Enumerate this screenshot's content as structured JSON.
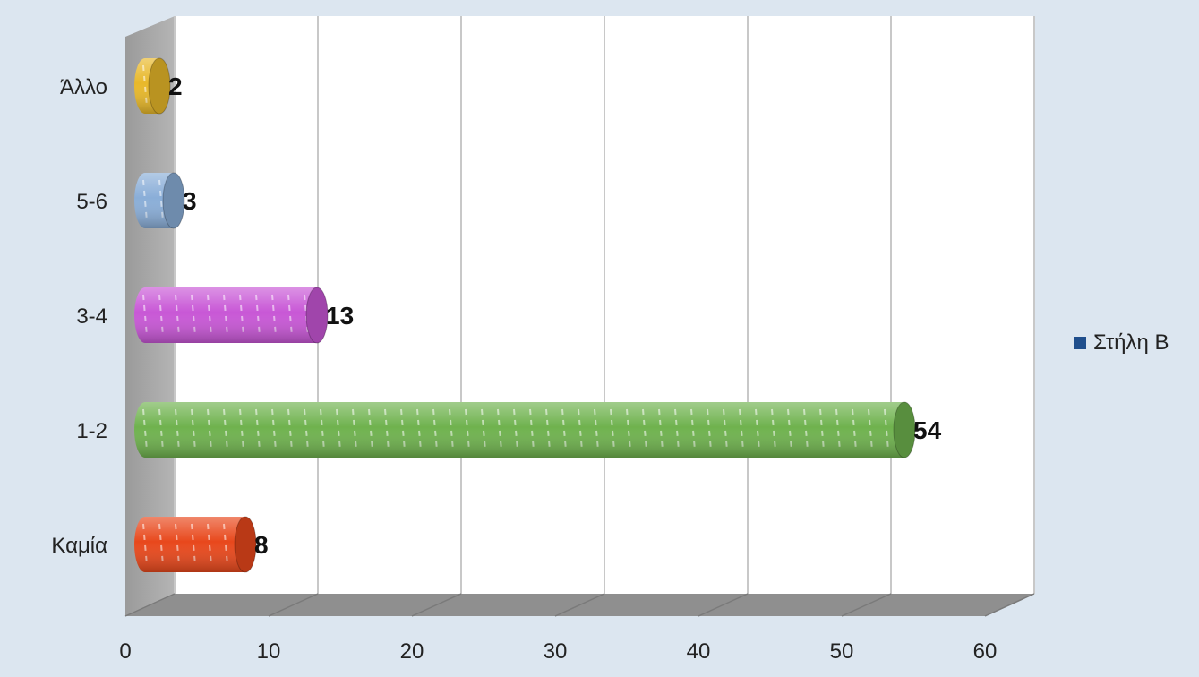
{
  "chart_data": {
    "type": "bar",
    "orientation": "horizontal",
    "categories": [
      "Καμία",
      "1-2",
      "3-4",
      "5-6",
      "Άλλο"
    ],
    "series": [
      {
        "name": "Στήλη B",
        "values": [
          8,
          54,
          13,
          3,
          2
        ],
        "colors": [
          "#e8481c",
          "#6fb24e",
          "#c857d6",
          "#8aaed8",
          "#e8b82a"
        ]
      }
    ],
    "legend_color": "#1f4e8c",
    "xlim": [
      0,
      60
    ],
    "xticks": [
      0,
      10,
      20,
      30,
      40,
      50,
      60
    ],
    "grid": true,
    "legend_position": "right",
    "data_labels": true
  }
}
